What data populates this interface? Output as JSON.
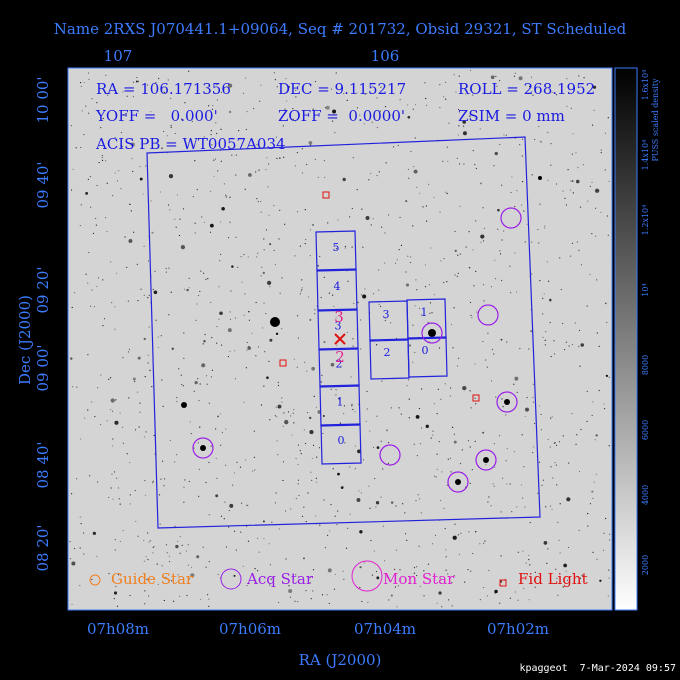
{
  "title": "Name 2RXS J070441.1+09064, Seq # 201732, Obsid 29321, ST Scheduled",
  "info": {
    "ra": "RA = 106.171356",
    "dec": "DEC = 9.115217",
    "roll": "ROLL = 268.1952",
    "yoff": "YOFF =   0.000'",
    "zoff": "ZOFF =  0.0000'",
    "zsim": "ZSIM = 0 mm",
    "acis": "ACIS PB = WT0057A034"
  },
  "axes": {
    "top_ticks": [
      "107",
      "106"
    ],
    "left_ticks": [
      "10 00'",
      "09 40'",
      "09 20'",
      "09 00'",
      "08 40'",
      "08 20'"
    ],
    "bottom_ticks": [
      "07h08m",
      "07h06m",
      "07h04m",
      "07h02m"
    ],
    "x_label": "RA (J2000)",
    "y_label": "Dec (J2000)"
  },
  "colorbar": {
    "label": "PUSS scaled density",
    "ticks": [
      "2000",
      "4000",
      "6000",
      "8000",
      "10⁴",
      "1.2x10⁴",
      "1.4x10⁴",
      "1.6x10⁴"
    ]
  },
  "chips": {
    "s_array": [
      "0",
      "1",
      "2",
      "3",
      "4",
      "5"
    ],
    "i_array": [
      "3",
      "1",
      "2",
      "0"
    ],
    "aim_labels": [
      "3",
      "2"
    ]
  },
  "legend": [
    "Guide Star",
    "Acq Star",
    "Mon Star",
    "Fid Light"
  ],
  "footer": "kpaggeot  7-Mar-2024 09:57"
}
